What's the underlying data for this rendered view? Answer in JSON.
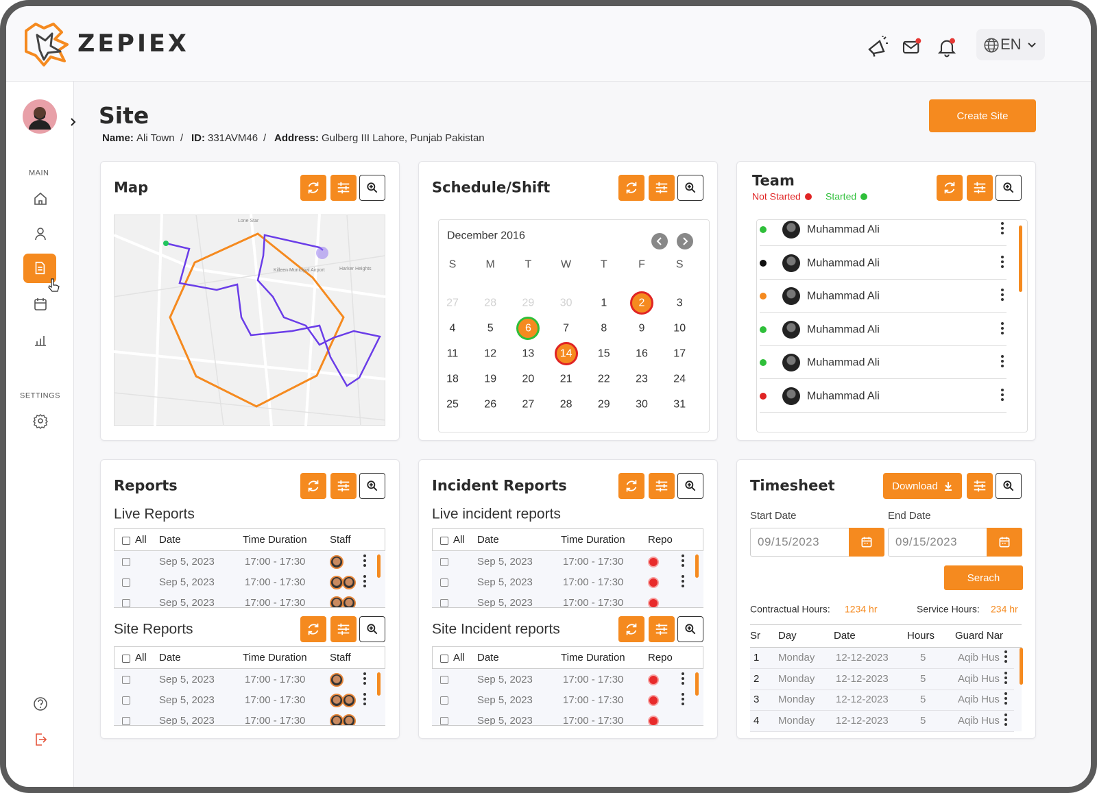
{
  "header": {
    "brand": "ZEPIEX",
    "language": "EN"
  },
  "sidebar": {
    "sections": [
      "MAIN",
      "SETTINGS"
    ]
  },
  "page": {
    "title": "Site",
    "separator": "/",
    "details": [
      {
        "label": "Name:",
        "value": "Ali Town"
      },
      {
        "label": "ID:",
        "value": "331AVM46"
      },
      {
        "label": "Address:",
        "value": "Gulberg III Lahore, Punjab Pakistan"
      }
    ],
    "create_button": "Create Site"
  },
  "map": {
    "title": "Map",
    "place_labels": [
      "Killeen Municipal Airport",
      "Harker Heights",
      "Lone Star"
    ]
  },
  "schedule": {
    "title": "Schedule/Shift",
    "month": "December 2016",
    "weekdays": [
      "S",
      "M",
      "T",
      "W",
      "T",
      "F",
      "S"
    ],
    "previous_month_days": [
      "27",
      "28",
      "29",
      "30"
    ],
    "days": [
      "1",
      {
        "label": "2",
        "ring": "#e02424",
        "fill": "#f58a1f"
      },
      "3",
      "4",
      "5",
      {
        "label": "6",
        "ring": "#2fbf3a",
        "fill": "#f58a1f"
      },
      "7",
      "8",
      "9",
      "10",
      "11",
      "12",
      "13",
      {
        "label": "14",
        "ring": "#e02424",
        "fill": "#f58a1f"
      },
      "15",
      "16",
      "17",
      "18",
      "19",
      "20",
      "21",
      "22",
      "23",
      "24",
      "25",
      "26",
      "27",
      "28",
      "29",
      "30",
      "31"
    ]
  },
  "team": {
    "title": "Team",
    "legend": [
      {
        "label": "Not Started",
        "color": "#e02424"
      },
      {
        "label": "Started",
        "color": "#2fbf3a"
      }
    ],
    "members": [
      {
        "name": "Muhammad Ali",
        "status_color": "#2fbf3a"
      },
      {
        "name": "Muhammad Ali",
        "status_color": "#111111"
      },
      {
        "name": "Muhammad Ali",
        "status_color": "#f58a1f"
      },
      {
        "name": "Muhammad Ali",
        "status_color": "#2fbf3a"
      },
      {
        "name": "Muhammad Ali",
        "status_color": "#2fbf3a"
      },
      {
        "name": "Muhammad Ali",
        "status_color": "#e02424"
      }
    ]
  },
  "reports": {
    "title": "Reports",
    "live": {
      "title": "Live Reports",
      "columns": [
        "All",
        "Date",
        "Time Duration",
        "Staff"
      ],
      "rows": [
        [
          "Sep 5, 2023",
          "17:00 - 17:30"
        ],
        [
          "Sep 5, 2023",
          "17:00 - 17:30"
        ],
        [
          "Sep 5, 2023",
          "17:00 - 17:30"
        ]
      ]
    },
    "site": {
      "title": "Site Reports",
      "columns": [
        "All",
        "Date",
        "Time Duration",
        "Staff"
      ],
      "rows": [
        [
          "Sep 5, 2023",
          "17:00 - 17:30"
        ],
        [
          "Sep 5, 2023",
          "17:00 - 17:30"
        ],
        [
          "Sep 5, 2023",
          "17:00 - 17:30"
        ]
      ]
    }
  },
  "incident_reports": {
    "title": "Incident Reports",
    "live": {
      "title": "Live incident reports",
      "columns": [
        "All",
        "Date",
        "Time Duration",
        "Report"
      ],
      "rows": [
        [
          "Sep 5, 2023",
          "17:00 - 17:30"
        ],
        [
          "Sep 5, 2023",
          "17:00 - 17:30"
        ],
        [
          "Sep 5, 2023",
          "17:00 - 17:30"
        ]
      ]
    },
    "site": {
      "title": "Site Incident reports",
      "columns": [
        "All",
        "Date",
        "Time Duration",
        "Report"
      ],
      "rows": [
        [
          "Sep 5, 2023",
          "17:00 - 17:30"
        ],
        [
          "Sep 5, 2023",
          "17:00 - 17:30"
        ],
        [
          "Sep 5, 2023",
          "17:00 - 17:30"
        ]
      ]
    }
  },
  "timesheet": {
    "title": "Timesheet",
    "download": "Download",
    "start_label": "Start Date",
    "end_label": "End Date",
    "start_date": "09/15/2023",
    "end_date": "09/15/2023",
    "search": "Serach",
    "contractual_label": "Contractual Hours:",
    "contractual_value": "1234 hr",
    "service_label": "Service Hours:",
    "service_value": "234 hr",
    "columns": [
      "Sr",
      "Day",
      "Date",
      "Hours",
      "Guard Name"
    ],
    "rows": [
      [
        "1",
        "Monday",
        "12-12-2023",
        "5",
        "Aqib Hussain"
      ],
      [
        "2",
        "Monday",
        "12-12-2023",
        "5",
        "Aqib Hussain"
      ],
      [
        "3",
        "Monday",
        "12-12-2023",
        "5",
        "Aqib Hussain"
      ],
      [
        "4",
        "Monday",
        "12-12-2023",
        "5",
        "Aqib Hussain"
      ]
    ]
  }
}
